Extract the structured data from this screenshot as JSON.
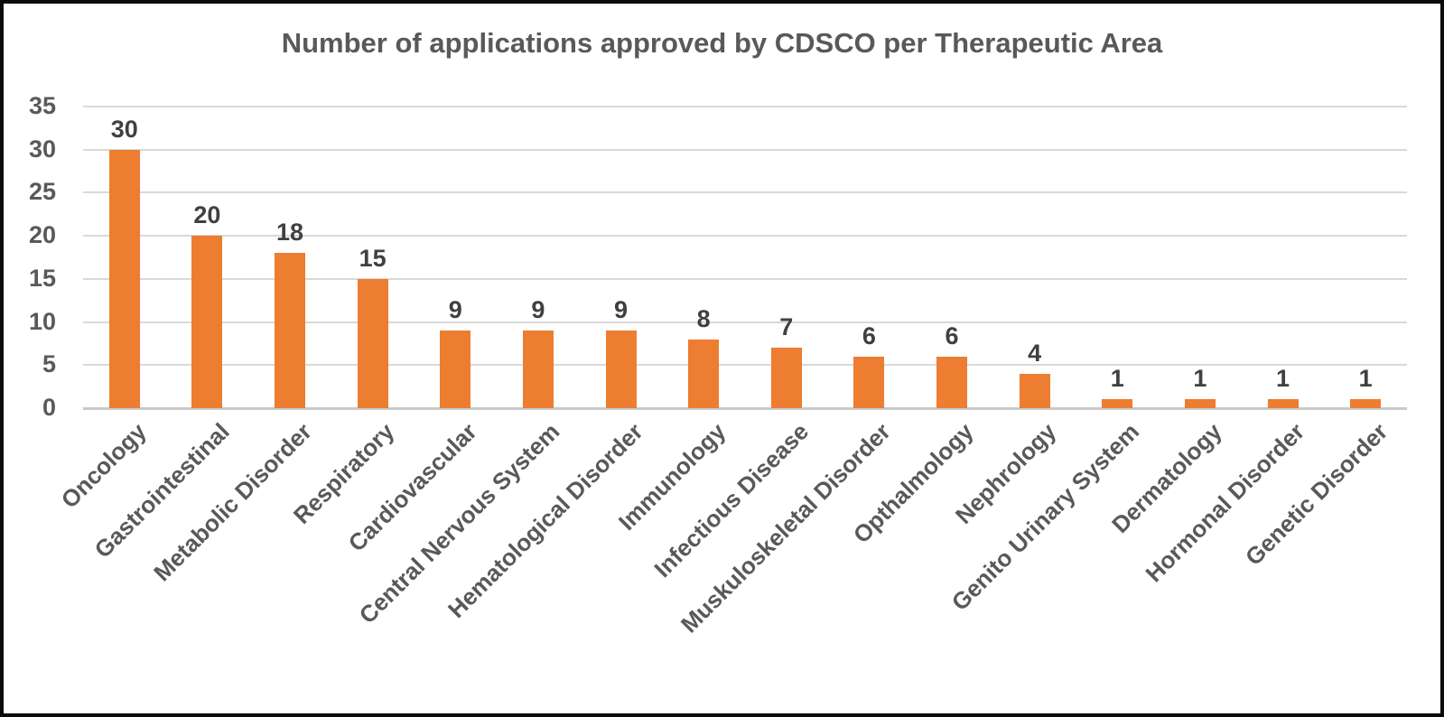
{
  "chart_data": {
    "type": "bar",
    "title": "Number of applications approved by CDSCO per Therapeutic Area",
    "categories": [
      "Oncology",
      "Gastrointestinal",
      "Metabolic Disorder",
      "Respiratory",
      "Cardiovascular",
      "Central Nervous System",
      "Hematological Disorder",
      "Immunology",
      "Infectious Disease",
      "Muskuloskeletal Disorder",
      "Opthalmology",
      "Nephrology",
      "Genito Urinary System",
      "Dermatology",
      "Hormonal Disorder",
      "Genetic Disorder"
    ],
    "values": [
      30,
      20,
      18,
      15,
      9,
      9,
      9,
      8,
      7,
      6,
      6,
      4,
      1,
      1,
      1,
      1
    ],
    "xlabel": "",
    "ylabel": "",
    "ylim": [
      0,
      35
    ],
    "yticks": [
      0,
      5,
      10,
      15,
      20,
      25,
      30,
      35
    ],
    "grid": true,
    "legend": false,
    "bar_color": "#ED7D31",
    "gridline_color": "#D9D9D9",
    "baseline_color": "#C9C9C9",
    "title_color": "#595959",
    "tick_label_color": "#595959",
    "value_label_color": "#404040",
    "frame_border_color": "#0A0A0A",
    "background_color": "#FFFFFF"
  }
}
